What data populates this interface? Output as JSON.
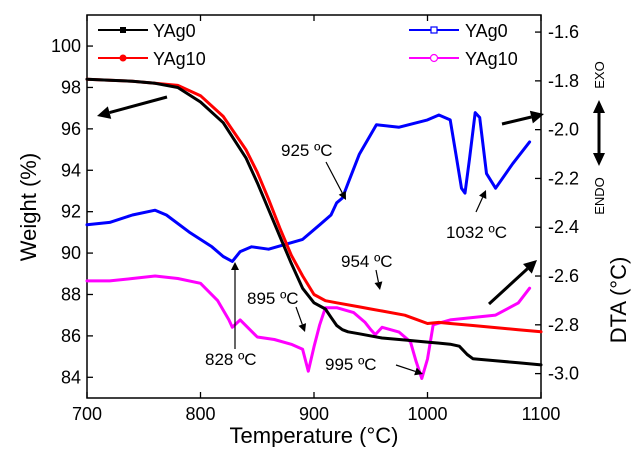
{
  "chart_data": {
    "type": "line",
    "xlabel": "Temperature (°C)",
    "ylabel_left": "Weight (%)",
    "ylabel_right": "DTA (°C)",
    "exo_label": "EXO",
    "endo_label": "ENDO",
    "xlim": [
      700,
      1100
    ],
    "ylim_left": [
      83,
      101.5
    ],
    "ylim_right": [
      -3.1,
      -1.53
    ],
    "x_ticks": [
      700,
      800,
      900,
      1000,
      1100
    ],
    "y_ticks_left": [
      84,
      86,
      88,
      90,
      92,
      94,
      96,
      98,
      100
    ],
    "y_ticks_right": [
      -3.0,
      -2.8,
      -2.6,
      -2.4,
      -2.2,
      -2.0,
      -1.8,
      -1.6
    ],
    "x_tick_labels": [
      "700",
      "800",
      "900",
      "1000",
      "1100"
    ],
    "y_tick_labels_left": [
      "84",
      "86",
      "88",
      "90",
      "92",
      "94",
      "96",
      "98",
      "100"
    ],
    "y_tick_labels_right": [
      "-3.0",
      "-2.8",
      "-2.6",
      "-2.4",
      "-2.2",
      "-2.0",
      "-1.8",
      "-1.6"
    ],
    "grid": false,
    "legend_left": {
      "placement": "top-left",
      "entries": [
        {
          "name": "YAg0",
          "color": "#000000",
          "marker": "square-filled"
        },
        {
          "name": "YAg10",
          "color": "#ff0000",
          "marker": "circle-filled"
        }
      ]
    },
    "legend_right": {
      "placement": "top-right",
      "entries": [
        {
          "name": "YAg0",
          "color": "#0000ff",
          "marker": "square-open"
        },
        {
          "name": "YAg10",
          "color": "#ff00ff",
          "marker": "circle-open"
        }
      ]
    },
    "series": [
      {
        "name": "YAg0",
        "kind": "TG",
        "axis": "left",
        "color": "#000000",
        "x": [
          700,
          720,
          740,
          760,
          780,
          800,
          820,
          840,
          850,
          860,
          870,
          880,
          890,
          900,
          910,
          915,
          920,
          925,
          930,
          940,
          960,
          980,
          1000,
          1010,
          1020,
          1028,
          1035,
          1040,
          1060,
          1080,
          1100
        ],
        "y": [
          98.4,
          98.35,
          98.3,
          98.2,
          98.0,
          97.3,
          96.3,
          94.6,
          93.4,
          92.1,
          90.8,
          89.5,
          88.3,
          87.6,
          87.3,
          86.9,
          86.5,
          86.3,
          86.2,
          86.1,
          85.9,
          85.8,
          85.7,
          85.65,
          85.6,
          85.5,
          85.1,
          84.9,
          84.8,
          84.7,
          84.6
        ]
      },
      {
        "name": "YAg10",
        "kind": "TG",
        "axis": "left",
        "color": "#ff0000",
        "x": [
          700,
          720,
          740,
          760,
          780,
          800,
          820,
          840,
          850,
          860,
          870,
          880,
          890,
          900,
          910,
          920,
          940,
          950,
          960,
          980,
          990,
          1000,
          1010,
          1020,
          1040,
          1060,
          1080,
          1100
        ],
        "y": [
          98.4,
          98.35,
          98.3,
          98.2,
          98.1,
          97.6,
          96.6,
          95.0,
          93.9,
          92.6,
          91.2,
          89.9,
          88.9,
          88.0,
          87.7,
          87.6,
          87.4,
          87.3,
          87.2,
          87.0,
          86.8,
          86.6,
          86.65,
          86.6,
          86.5,
          86.4,
          86.3,
          86.2
        ]
      },
      {
        "name": "YAg0",
        "kind": "DTA",
        "axis": "right",
        "color": "#0000ff",
        "x": [
          700,
          720,
          740,
          760,
          770,
          790,
          810,
          820,
          828,
          835,
          845,
          860,
          875,
          890,
          905,
          915,
          920,
          925,
          930,
          940,
          955,
          975,
          1000,
          1010,
          1020,
          1025,
          1030,
          1033,
          1037,
          1042,
          1046,
          1052,
          1060,
          1075,
          1090
        ],
        "y": [
          -2.39,
          -2.38,
          -2.35,
          -2.33,
          -2.35,
          -2.42,
          -2.48,
          -2.52,
          -2.54,
          -2.5,
          -2.48,
          -2.49,
          -2.47,
          -2.45,
          -2.39,
          -2.35,
          -2.3,
          -2.28,
          -2.22,
          -2.1,
          -1.98,
          -1.99,
          -1.96,
          -1.94,
          -1.96,
          -2.1,
          -2.24,
          -2.26,
          -2.12,
          -1.93,
          -1.95,
          -2.18,
          -2.24,
          -2.14,
          -2.05
        ]
      },
      {
        "name": "YAg10",
        "kind": "DTA",
        "axis": "right",
        "color": "#ff00ff",
        "x": [
          700,
          720,
          740,
          760,
          780,
          800,
          815,
          825,
          828,
          835,
          850,
          865,
          880,
          890,
          895,
          900,
          905,
          910,
          920,
          935,
          945,
          950,
          954,
          960,
          975,
          985,
          990,
          995,
          1000,
          1005,
          1020,
          1040,
          1060,
          1080,
          1090
        ],
        "y": [
          -2.62,
          -2.62,
          -2.61,
          -2.6,
          -2.61,
          -2.63,
          -2.7,
          -2.78,
          -2.81,
          -2.78,
          -2.85,
          -2.86,
          -2.88,
          -2.9,
          -2.99,
          -2.89,
          -2.8,
          -2.73,
          -2.73,
          -2.75,
          -2.79,
          -2.82,
          -2.84,
          -2.81,
          -2.83,
          -2.87,
          -2.95,
          -3.02,
          -2.94,
          -2.8,
          -2.78,
          -2.77,
          -2.76,
          -2.71,
          -2.65
        ]
      }
    ],
    "annotations": [
      {
        "text": "925 ºC"
      },
      {
        "text": "1032 ºC"
      },
      {
        "text": "954 ºC"
      },
      {
        "text": "895 ºC"
      },
      {
        "text": "828 ºC"
      },
      {
        "text": "995 ºC"
      }
    ]
  }
}
